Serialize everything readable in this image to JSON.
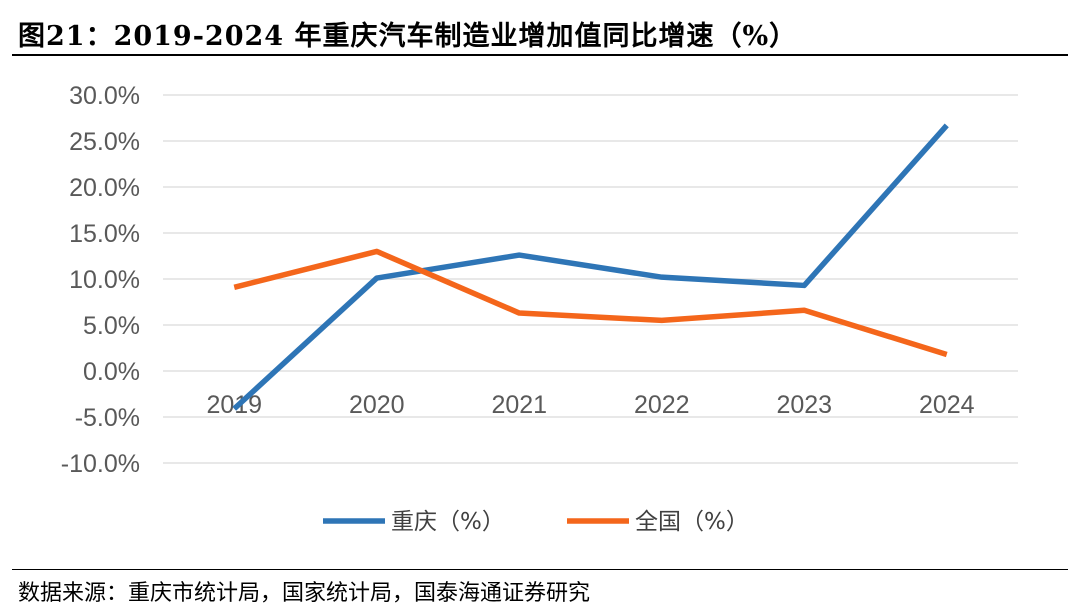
{
  "figure": {
    "title": "图21：2019-2024 年重庆汽车制造业增加值同比增速（%）",
    "source": "数据来源：重庆市统计局，国家统计局，国泰海通证券研究"
  },
  "colors": {
    "chongqing": "#2E75B6",
    "national": "#F4661B",
    "grid": "#D9D9D9",
    "axis_text": "#595959"
  },
  "chart_data": {
    "type": "line",
    "title": "2019-2024 年重庆汽车制造业增加值同比增速（%）",
    "xlabel": "",
    "ylabel": "",
    "categories": [
      "2019",
      "2020",
      "2021",
      "2022",
      "2023",
      "2024"
    ],
    "y_ticks": [
      "30.0%",
      "25.0%",
      "20.0%",
      "15.0%",
      "10.0%",
      "5.0%",
      "0.0%",
      "-5.0%",
      "-10.0%"
    ],
    "ylim": [
      -10,
      30
    ],
    "y_step": 5,
    "grid": true,
    "legend_position": "bottom",
    "series": [
      {
        "name": "重庆（%）",
        "color": "#2E75B6",
        "values": [
          -4.1,
          10.1,
          12.6,
          10.2,
          9.3,
          26.7
        ]
      },
      {
        "name": "全国（%）",
        "color": "#F4661B",
        "values": [
          9.1,
          13.0,
          6.3,
          5.5,
          6.6,
          1.8
        ]
      }
    ]
  }
}
